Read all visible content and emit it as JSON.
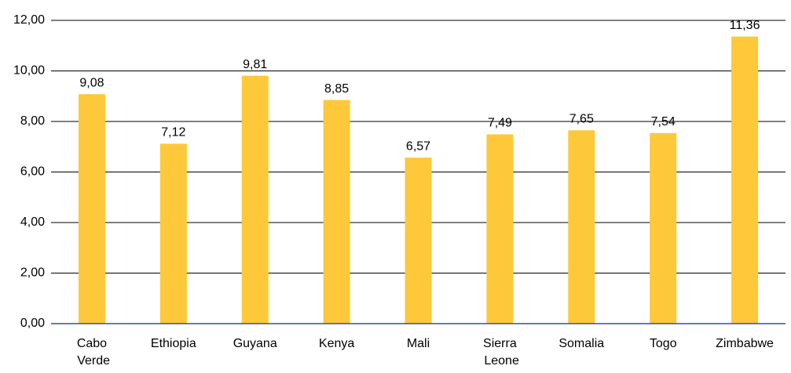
{
  "chart_data": {
    "type": "bar",
    "categories": [
      "Cabo Verde",
      "Ethiopia",
      "Guyana",
      "Kenya",
      "Mali",
      "Sierra Leone",
      "Somalia",
      "Togo",
      "Zimbabwe"
    ],
    "values": [
      9.08,
      7.12,
      9.81,
      8.85,
      6.57,
      7.49,
      7.65,
      7.54,
      11.36
    ],
    "value_labels": [
      "9,08",
      "7,12",
      "9,81",
      "8,85",
      "6,57",
      "7,49",
      "7,65",
      "7,54",
      "11,36"
    ],
    "color": "#fdc93a",
    "ylim": [
      0,
      12
    ],
    "yticks": [
      {
        "value": 0,
        "label": "0,00"
      },
      {
        "value": 2,
        "label": "2,00"
      },
      {
        "value": 4,
        "label": "4,00"
      },
      {
        "value": 6,
        "label": "6,00"
      },
      {
        "value": 8,
        "label": "8,00"
      },
      {
        "value": 10,
        "label": "10,00"
      },
      {
        "value": 12,
        "label": "12,00"
      }
    ],
    "grid": true
  }
}
